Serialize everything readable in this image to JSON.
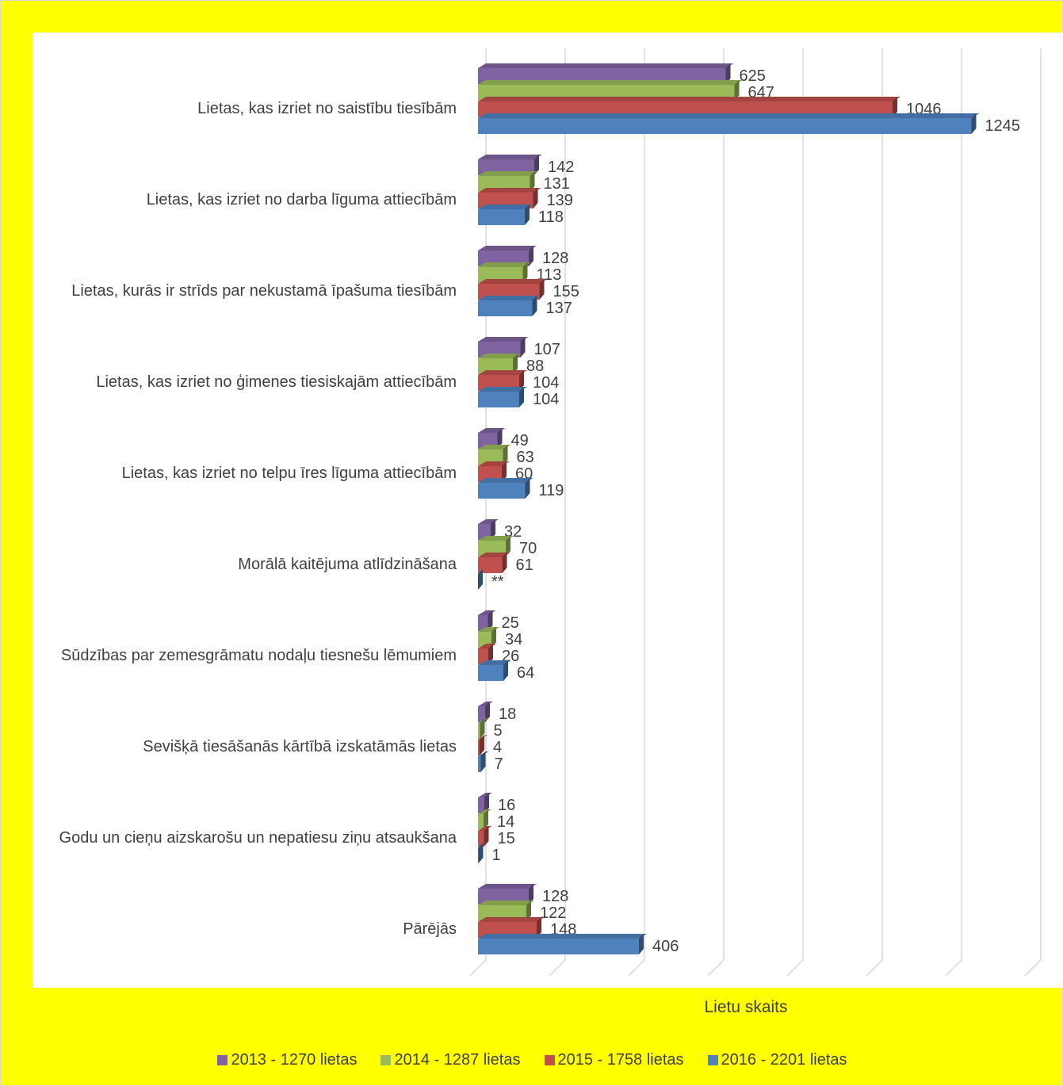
{
  "chart_data": {
    "type": "bar",
    "orientation": "horizontal",
    "xlabel": "Lietu skaits",
    "categories": [
      "Lietas, kas izriet no saistību tiesībām",
      "Lietas, kas izriet no darba līguma attiecībām",
      "Lietas, kurās ir strīds par nekustamā īpašuma tiesībām",
      "Lietas, kas izriet no ģimenes tiesiskajām attiecībām",
      "Lietas, kas izriet no telpu īres līguma attiecībām",
      "Morālā kaitējuma atlīdzināšana",
      "Sūdzības par zemesgrāmatu nodaļu tiesnešu lēmumiem",
      "Sevišķā tiesāšanās kārtībā izskatāmās lietas",
      "Godu un cieņu aizskarošu un nepatiesu ziņu atsaukšana",
      "Pārējās"
    ],
    "series": [
      {
        "name": "2013 - 1270 lietas",
        "color": "#8064a2",
        "values": [
          625,
          142,
          128,
          107,
          49,
          32,
          25,
          18,
          16,
          128
        ],
        "labels": [
          "625",
          "142",
          "128",
          "107",
          "49",
          "32",
          "25",
          "18",
          "16",
          "128"
        ]
      },
      {
        "name": "2014 - 1287 lietas",
        "color": "#9bbb59",
        "values": [
          647,
          131,
          113,
          88,
          63,
          70,
          34,
          5,
          14,
          122
        ],
        "labels": [
          "647",
          "131",
          "113",
          "88",
          "63",
          "70",
          "34",
          "5",
          "14",
          "122"
        ]
      },
      {
        "name": "2015 - 1758 lietas",
        "color": "#c0504d",
        "values": [
          1046,
          139,
          155,
          104,
          60,
          61,
          26,
          4,
          15,
          148
        ],
        "labels": [
          "1046",
          "139",
          "155",
          "104",
          "60",
          "61",
          "26",
          "4",
          "15",
          "148"
        ]
      },
      {
        "name": "2016 - 2201 lietas",
        "color": "#4f81bd",
        "values": [
          1245,
          118,
          137,
          104,
          119,
          0,
          64,
          7,
          1,
          406
        ],
        "labels": [
          "1245",
          "118",
          "137",
          "104",
          "119",
          "**",
          "64",
          "7",
          "1",
          "406"
        ]
      }
    ],
    "xlim": [
      0,
      1400
    ],
    "grid": true,
    "legend_position": "bottom"
  }
}
